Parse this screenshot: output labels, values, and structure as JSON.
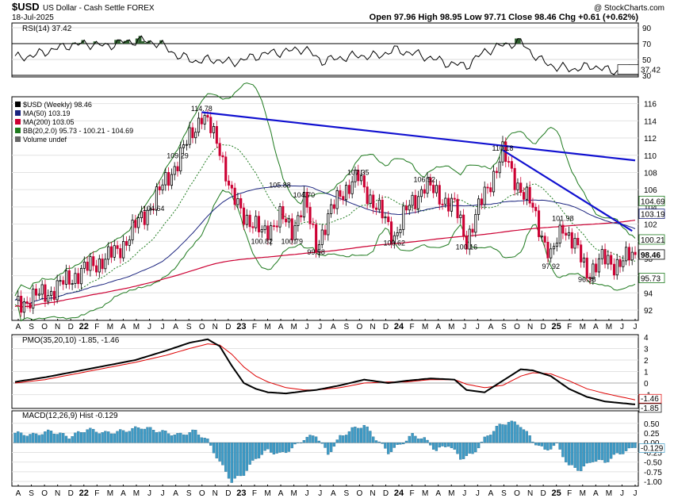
{
  "header": {
    "symbol": "$USD",
    "name": "US Dollar - Cash Settle FOREX",
    "credit": "@ StockCharts.com",
    "date": "18-Jul-2025",
    "quote": "Open 97.96  High 98.95  Low 97.71  Close 98.46  Chg +0.61 (+0.62%)"
  },
  "colors": {
    "up": "#000000",
    "down": "#cc0033",
    "ma50": "#1a237e",
    "ma200": "#cc0033",
    "bb": "#1e7a1e",
    "trend": "#1010d0",
    "pmo": "#000000",
    "pmo_signal": "#dd0000",
    "hist": "#3e9bc6",
    "rsi": "#000000",
    "rsi_fill": "#2e5e2e"
  },
  "chart_data": [
    {
      "type": "line",
      "panel": "rsi",
      "legend": "RSI(14) 37.42",
      "y_ticks": [
        90,
        70,
        50,
        30
      ],
      "ylim": [
        30,
        90
      ],
      "levels": [
        70,
        30
      ],
      "last_value": "37.42",
      "x_weeks": [
        0,
        6,
        12,
        18,
        24,
        30,
        36,
        42,
        48,
        54,
        60,
        66,
        72,
        78,
        84,
        90,
        96,
        102,
        108,
        114,
        120,
        126,
        132,
        138,
        144,
        150,
        156,
        162,
        168,
        174,
        180,
        186,
        192,
        198,
        204
      ],
      "values": [
        52,
        55,
        62,
        68,
        70,
        67,
        72,
        74,
        70,
        55,
        48,
        50,
        46,
        52,
        58,
        60,
        64,
        48,
        52,
        55,
        54,
        62,
        58,
        52,
        45,
        42,
        60,
        68,
        72,
        50,
        40,
        38,
        42,
        35,
        37.42
      ]
    },
    {
      "type": "candlestick",
      "panel": "price",
      "legend": [
        "$USD (Weekly) 98.46",
        "MA(50) 103.19",
        "MA(200) 103.05",
        "BB(20,2.0) 95.73 - 100.21 - 104.69",
        "Volume undef"
      ],
      "y_ticks": [
        92,
        94,
        96,
        98,
        100,
        102,
        104,
        106,
        108,
        110,
        112,
        114,
        116
      ],
      "ylim": [
        90.8,
        116.8
      ],
      "x_ticks": [
        "A",
        "S",
        "O",
        "N",
        "D",
        "22",
        "F",
        "M",
        "A",
        "M",
        "J",
        "J",
        "A",
        "S",
        "O",
        "N",
        "D",
        "23",
        "F",
        "M",
        "A",
        "M",
        "J",
        "J",
        "A",
        "S",
        "O",
        "N",
        "D",
        "24",
        "F",
        "M",
        "A",
        "M",
        "J",
        "J",
        "A",
        "S",
        "O",
        "N",
        "D",
        "25",
        "F",
        "M",
        "A",
        "M",
        "J",
        "J"
      ],
      "close_anchor_weeks": [
        0,
        12,
        22,
        34,
        46,
        54,
        62,
        68,
        72,
        76,
        82,
        88,
        92,
        96,
        100,
        108,
        114,
        120,
        126,
        130,
        136,
        146,
        150,
        156,
        162,
        168,
        172,
        178,
        182,
        186,
        190,
        195,
        199,
        203,
        206
      ],
      "close_anchors": [
        92.6,
        94.2,
        96.5,
        98.8,
        104.6,
        109.3,
        114.78,
        111,
        105,
        103.2,
        100.82,
        102.8,
        101.3,
        104.7,
        99.58,
        105.6,
        107.35,
        104,
        100.62,
        103.5,
        106.52,
        104,
        100.16,
        105.5,
        110.18,
        106,
        103.8,
        97.92,
        101.98,
        99.5,
        96.38,
        97.85,
        97.4,
        97.9,
        98.46
      ],
      "annotations": [
        {
          "label": "114.78",
          "week": 62,
          "value": 114.78
        },
        {
          "label": "109.29",
          "week": 54,
          "value": 109.29
        },
        {
          "label": "104.64",
          "week": 46,
          "value": 104.64
        },
        {
          "label": "105.88",
          "week": 88,
          "value": 105.88
        },
        {
          "label": "104.70",
          "week": 96,
          "value": 104.7
        },
        {
          "label": "100.82",
          "week": 82,
          "value": 100.82
        },
        {
          "label": "100.79",
          "week": 92,
          "value": 100.79
        },
        {
          "label": "99.58",
          "week": 100,
          "value": 99.58
        },
        {
          "label": "107.35",
          "week": 114,
          "value": 107.35
        },
        {
          "label": "100.62",
          "week": 126,
          "value": 100.62
        },
        {
          "label": "106.52",
          "week": 136,
          "value": 106.52
        },
        {
          "label": "100.16",
          "week": 150,
          "value": 100.16
        },
        {
          "label": "110.18",
          "week": 162,
          "value": 110.18
        },
        {
          "label": "101.98",
          "week": 182,
          "value": 101.98
        },
        {
          "label": "97.92",
          "week": 178,
          "value": 97.92
        },
        {
          "label": "96.38",
          "week": 190,
          "value": 96.38
        }
      ],
      "last_labels": [
        "104.69",
        "103.19",
        "100.21",
        "98.46",
        "95.73"
      ],
      "trendlines": [
        {
          "from": [
            62,
            115
          ],
          "to": [
            206,
            109.4
          ]
        },
        {
          "from": [
            162,
            110.6
          ],
          "to": [
            205,
            101.2
          ]
        }
      ]
    },
    {
      "type": "line",
      "panel": "pmo",
      "legend": "PMO(35,20,10) -1.85, -1.46",
      "y_ticks": [
        4,
        3,
        2,
        1,
        0,
        -1
      ],
      "ylim": [
        -2.2,
        4.2
      ],
      "last_labels": [
        "-1.46",
        "-1.85"
      ],
      "x_weeks": [
        0,
        10,
        20,
        30,
        40,
        50,
        58,
        64,
        68,
        72,
        76,
        80,
        84,
        90,
        96,
        100,
        108,
        116,
        124,
        130,
        138,
        146,
        150,
        156,
        162,
        168,
        172,
        178,
        184,
        190,
        196,
        206
      ],
      "pmo": [
        0.1,
        0.5,
        1.0,
        1.5,
        2.0,
        2.8,
        3.5,
        3.8,
        3.2,
        1.5,
        0,
        -0.5,
        -0.8,
        -0.9,
        -0.7,
        -0.6,
        -0.2,
        0.3,
        0,
        0.2,
        0.4,
        0.3,
        -0.6,
        -0.8,
        0.2,
        1.2,
        1.1,
        0.6,
        -0.5,
        -1.2,
        -1.6,
        -1.85
      ],
      "signal": [
        0,
        0.3,
        0.8,
        1.3,
        1.8,
        2.4,
        3.0,
        3.4,
        3.3,
        2.5,
        1.4,
        0.6,
        0.1,
        -0.4,
        -0.6,
        -0.6,
        -0.4,
        0,
        0.1,
        0.1,
        0.3,
        0.3,
        -0.1,
        -0.4,
        -0.2,
        0.6,
        0.9,
        0.8,
        0.2,
        -0.5,
        -0.9,
        -1.46
      ]
    },
    {
      "type": "bar",
      "panel": "macd",
      "legend": "MACD(12,26,9) Hist -0.129",
      "y_ticks": [
        "0.50",
        "0.25",
        "0.00",
        "-0.25",
        "-0.50",
        "-0.75",
        "-1.00"
      ],
      "ylim": [
        -1.12,
        0.7
      ],
      "last_label": "-0.129",
      "x_ticks": [
        "A",
        "S",
        "O",
        "N",
        "D",
        "22",
        "F",
        "M",
        "A",
        "M",
        "J",
        "J",
        "A",
        "S",
        "O",
        "N",
        "D",
        "23",
        "F",
        "M",
        "A",
        "M",
        "J",
        "J",
        "A",
        "S",
        "O",
        "N",
        "D",
        "24",
        "F",
        "M",
        "A",
        "M",
        "J",
        "J",
        "A",
        "S",
        "O",
        "N",
        "D",
        "25",
        "F",
        "M",
        "A",
        "M",
        "J",
        "J"
      ],
      "x_weeks": [
        0,
        6,
        12,
        18,
        24,
        30,
        36,
        42,
        48,
        54,
        60,
        64,
        68,
        72,
        76,
        80,
        84,
        88,
        92,
        96,
        100,
        104,
        108,
        112,
        116,
        120,
        124,
        128,
        132,
        136,
        140,
        144,
        148,
        152,
        156,
        160,
        164,
        168,
        172,
        176,
        180,
        184,
        188,
        192,
        196,
        200,
        206
      ],
      "values": [
        0.25,
        0.2,
        0.3,
        0.15,
        0.35,
        0.25,
        0.3,
        0.4,
        0.3,
        0.2,
        0.3,
        0.05,
        -0.5,
        -1.0,
        -0.8,
        -0.4,
        -0.2,
        -0.3,
        -0.15,
        0.1,
        0.2,
        -0.3,
        0.15,
        0.35,
        0.45,
        0.1,
        -0.25,
        -0.05,
        0.2,
        0.1,
        -0.2,
        -0.05,
        -0.4,
        -0.3,
        0.1,
        0.4,
        0.55,
        0.45,
        0.05,
        -0.2,
        -0.05,
        -0.6,
        -0.7,
        -0.45,
        -0.5,
        -0.3,
        -0.13
      ]
    }
  ]
}
